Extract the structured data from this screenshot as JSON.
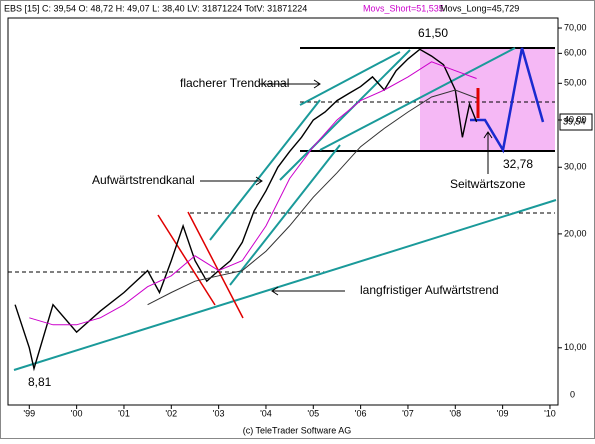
{
  "chart_data": {
    "type": "line",
    "header": "EBS [15] C: 39,54 O: 48,72 H: 49,07 L: 38,40 LV: 31871224 TotV: 31871224",
    "header_short": "Movs_Short=51,535",
    "header_long": "Movs_Long=45,729",
    "footer": "(c) TeleTrader Software AG",
    "log_y": true,
    "xlim": [
      1998.55,
      2010.17
    ],
    "xticks": [
      {
        "value": 1999,
        "label": "'99"
      },
      {
        "value": 2000,
        "label": "'00"
      },
      {
        "value": 2001,
        "label": "'01"
      },
      {
        "value": 2002,
        "label": "'02"
      },
      {
        "value": 2003,
        "label": "'03"
      },
      {
        "value": 2004,
        "label": "'04"
      },
      {
        "value": 2005,
        "label": "'05"
      },
      {
        "value": 2006,
        "label": "'06"
      },
      {
        "value": 2007,
        "label": "'07"
      },
      {
        "value": 2008,
        "label": "'08"
      },
      {
        "value": 2009,
        "label": "'09"
      },
      {
        "value": 2010,
        "label": "'10"
      }
    ],
    "ylim": [
      7.06,
      74.4
    ],
    "yticks": [
      {
        "value": 10,
        "label": "10,00"
      },
      {
        "value": 20,
        "label": "20,00"
      },
      {
        "value": 30,
        "label": "30,00"
      },
      {
        "value": 40,
        "label": "40,00"
      },
      {
        "value": 50,
        "label": "50,00"
      },
      {
        "value": 60,
        "label": "60,00"
      },
      {
        "value": 70,
        "label": "70,00"
      }
    ],
    "bottom_label": "0",
    "series": [
      {
        "color": "#000000",
        "x": [
          1998.7,
          1999.0,
          1999.1,
          1999.5,
          2000.0,
          2000.5,
          2001.0,
          2001.5,
          2001.75,
          2002.0,
          2002.25,
          2002.5,
          2002.75,
          2003.0,
          2003.25,
          2003.5,
          2003.75,
          2004.0,
          2004.25,
          2004.5,
          2004.75,
          2005.0,
          2005.25,
          2005.5,
          2005.75,
          2006.0,
          2006.25,
          2006.5,
          2006.75,
          2007.0,
          2007.25,
          2007.5,
          2007.75,
          2008.0,
          2008.15,
          2008.3,
          2008.45
        ],
        "values": [
          13,
          10,
          8.81,
          13,
          11,
          12.5,
          14,
          16,
          14,
          17,
          21,
          17,
          15,
          16,
          17,
          19,
          23,
          26,
          30,
          33,
          36,
          40,
          42,
          45,
          47,
          49,
          52,
          48,
          54,
          58,
          61.5,
          59,
          56,
          48,
          36,
          44,
          39.54
        ]
      },
      {
        "color": "#cc00cc",
        "x": [
          1999.0,
          1999.5,
          2000.0,
          2000.5,
          2001.0,
          2001.5,
          2002.0,
          2002.5,
          2003.0,
          2003.5,
          2004.0,
          2004.5,
          2005.0,
          2005.5,
          2006.0,
          2006.5,
          2007.0,
          2007.5,
          2008.0,
          2008.45
        ],
        "values": [
          12,
          11.5,
          11.5,
          12,
          13,
          14.5,
          15.5,
          17.5,
          16,
          17,
          21,
          28,
          34,
          40,
          45,
          48,
          52,
          57,
          54,
          51.5
        ]
      },
      {
        "color": "#333333",
        "x": [
          2001.5,
          2002.0,
          2002.5,
          2003.0,
          2003.5,
          2004.0,
          2004.5,
          2005.0,
          2005.5,
          2006.0,
          2006.5,
          2007.0,
          2007.5,
          2008.0,
          2008.45
        ],
        "values": [
          13,
          14,
          15,
          15.5,
          16,
          18,
          21,
          25,
          29,
          34,
          38,
          42,
          46,
          48,
          45.7
        ]
      }
    ],
    "annotations": {
      "high": "61,50",
      "low_zone": "32,78",
      "low": "8,81",
      "last": "39,54",
      "flat_channel": "flacherer Trendkanal",
      "up_channel": "Aufwärtstrendkanal",
      "long_trend": "langfristiger Aufwärtstrend",
      "sideways": "Seitwärtszone"
    }
  }
}
